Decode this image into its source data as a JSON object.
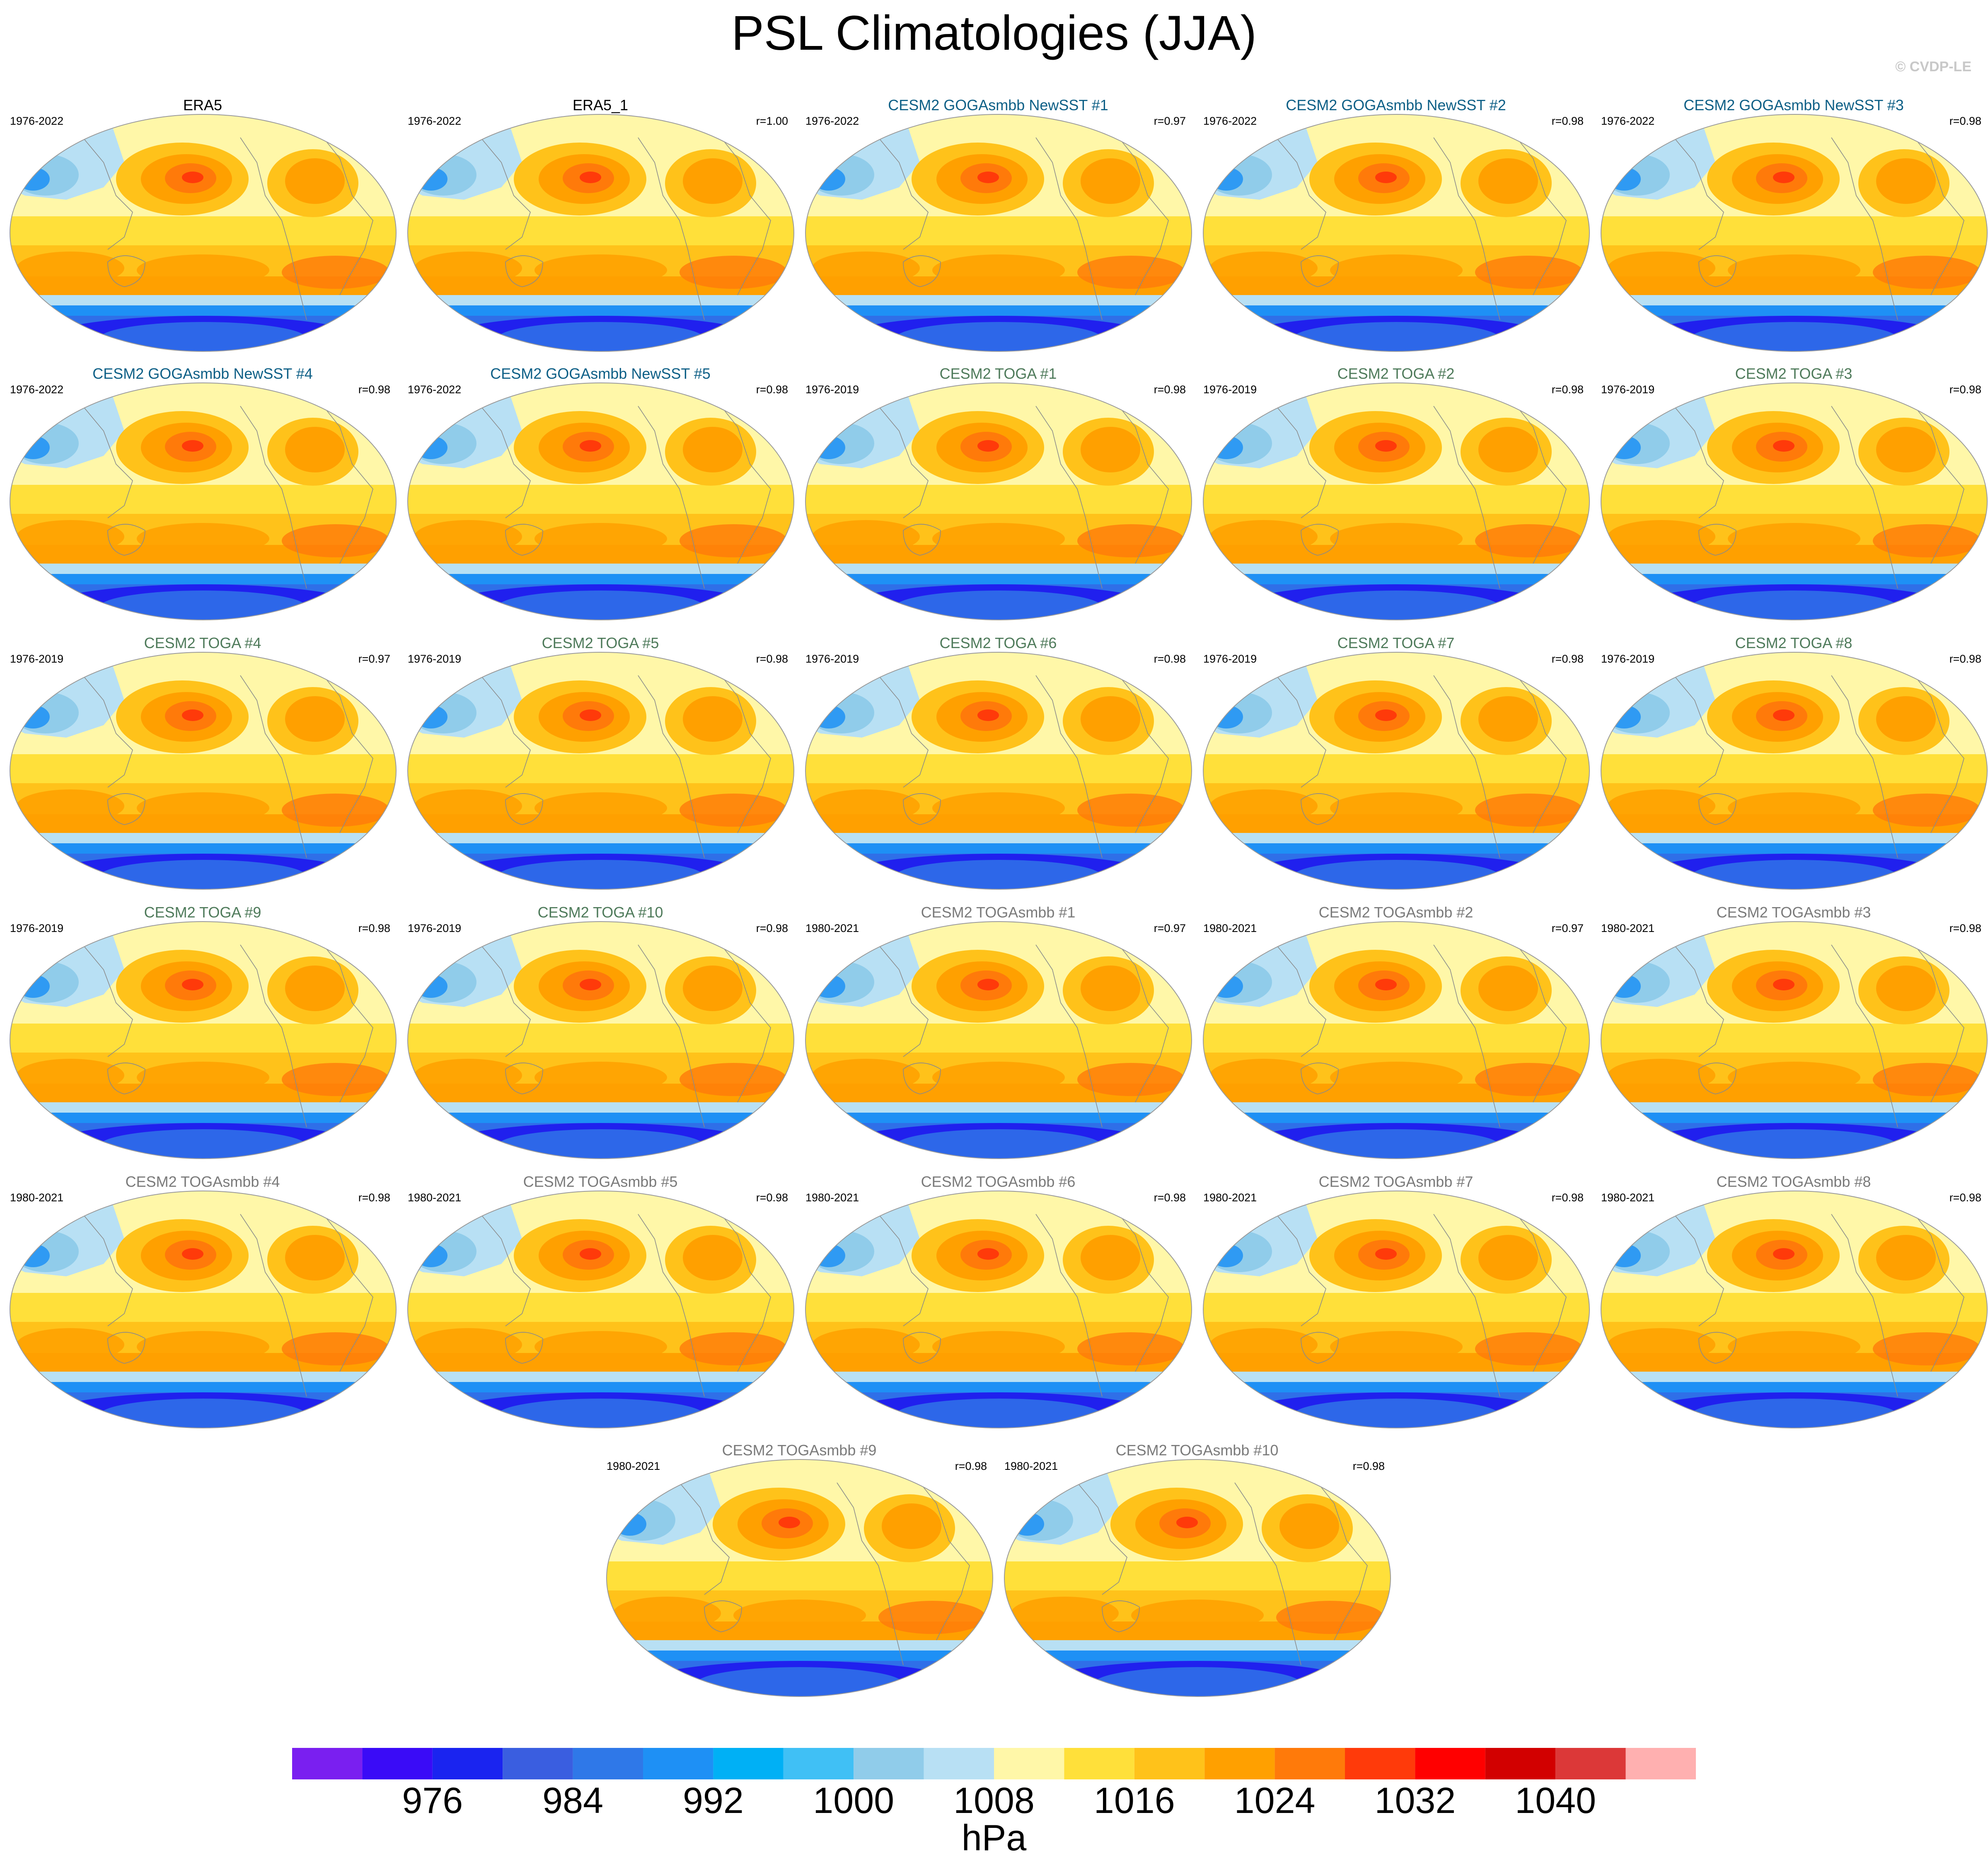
{
  "title": "PSL Climatologies (JJA)",
  "watermark": "© CVDP-LE",
  "title_colors": {
    "obs": "#000000",
    "goga": "#0d5f86",
    "toga": "#4e7a5a",
    "togasmbb": "#7a7a7a"
  },
  "panels": [
    {
      "title": "ERA5",
      "period": "1976-2022",
      "corr": "",
      "group": "obs"
    },
    {
      "title": "ERA5_1",
      "period": "1976-2022",
      "corr": "r=1.00",
      "group": "obs"
    },
    {
      "title": "CESM2 GOGAsmbb NewSST #1",
      "period": "1976-2022",
      "corr": "r=0.97",
      "group": "goga"
    },
    {
      "title": "CESM2 GOGAsmbb NewSST #2",
      "period": "1976-2022",
      "corr": "r=0.98",
      "group": "goga"
    },
    {
      "title": "CESM2 GOGAsmbb NewSST #3",
      "period": "1976-2022",
      "corr": "r=0.98",
      "group": "goga"
    },
    {
      "title": "CESM2 GOGAsmbb NewSST #4",
      "period": "1976-2022",
      "corr": "r=0.98",
      "group": "goga"
    },
    {
      "title": "CESM2 GOGAsmbb NewSST #5",
      "period": "1976-2022",
      "corr": "r=0.98",
      "group": "goga"
    },
    {
      "title": "CESM2 TOGA #1",
      "period": "1976-2019",
      "corr": "r=0.98",
      "group": "toga"
    },
    {
      "title": "CESM2 TOGA #2",
      "period": "1976-2019",
      "corr": "r=0.98",
      "group": "toga"
    },
    {
      "title": "CESM2 TOGA #3",
      "period": "1976-2019",
      "corr": "r=0.98",
      "group": "toga"
    },
    {
      "title": "CESM2 TOGA #4",
      "period": "1976-2019",
      "corr": "r=0.97",
      "group": "toga"
    },
    {
      "title": "CESM2 TOGA #5",
      "period": "1976-2019",
      "corr": "r=0.98",
      "group": "toga"
    },
    {
      "title": "CESM2 TOGA #6",
      "period": "1976-2019",
      "corr": "r=0.98",
      "group": "toga"
    },
    {
      "title": "CESM2 TOGA #7",
      "period": "1976-2019",
      "corr": "r=0.98",
      "group": "toga"
    },
    {
      "title": "CESM2 TOGA #8",
      "period": "1976-2019",
      "corr": "r=0.98",
      "group": "toga"
    },
    {
      "title": "CESM2 TOGA #9",
      "period": "1976-2019",
      "corr": "r=0.98",
      "group": "toga"
    },
    {
      "title": "CESM2 TOGA #10",
      "period": "1976-2019",
      "corr": "r=0.98",
      "group": "toga"
    },
    {
      "title": "CESM2 TOGAsmbb #1",
      "period": "1980-2021",
      "corr": "r=0.97",
      "group": "togasmbb"
    },
    {
      "title": "CESM2 TOGAsmbb #2",
      "period": "1980-2021",
      "corr": "r=0.97",
      "group": "togasmbb"
    },
    {
      "title": "CESM2 TOGAsmbb #3",
      "period": "1980-2021",
      "corr": "r=0.98",
      "group": "togasmbb"
    },
    {
      "title": "CESM2 TOGAsmbb #4",
      "period": "1980-2021",
      "corr": "r=0.98",
      "group": "togasmbb"
    },
    {
      "title": "CESM2 TOGAsmbb #5",
      "period": "1980-2021",
      "corr": "r=0.98",
      "group": "togasmbb"
    },
    {
      "title": "CESM2 TOGAsmbb #6",
      "period": "1980-2021",
      "corr": "r=0.98",
      "group": "togasmbb"
    },
    {
      "title": "CESM2 TOGAsmbb #7",
      "period": "1980-2021",
      "corr": "r=0.98",
      "group": "togasmbb"
    },
    {
      "title": "CESM2 TOGAsmbb #8",
      "period": "1980-2021",
      "corr": "r=0.98",
      "group": "togasmbb"
    },
    {
      "title": "CESM2 TOGAsmbb #9",
      "period": "1980-2021",
      "corr": "r=0.98",
      "group": "togasmbb"
    },
    {
      "title": "CESM2 TOGAsmbb #10",
      "period": "1980-2021",
      "corr": "r=0.98",
      "group": "togasmbb"
    }
  ],
  "colorbar": {
    "colors": [
      "#7a1ff0",
      "#3a0bf7",
      "#1a24f0",
      "#3a5ee0",
      "#2f78e8",
      "#1e90f5",
      "#00b0f5",
      "#40c0f5",
      "#90ccea",
      "#b8e0f4",
      "#fff7a8",
      "#ffe03a",
      "#ffc21a",
      "#ffa000",
      "#ff7a0a",
      "#ff3a0a",
      "#ff0000",
      "#d20000",
      "#dc3838",
      "#ffb0b0"
    ],
    "labels": [
      "976",
      "984",
      "992",
      "1000",
      "1008",
      "1016",
      "1024",
      "1032",
      "1040"
    ],
    "units": "hPa"
  },
  "map_colors": {
    "deep_low": "#2020ee",
    "low": "#2f6fe8",
    "mid_low": "#1e90f5",
    "light_low": "#90ccea",
    "pale_low": "#b8e0f4",
    "neutral": "#fff7a8",
    "moderate": "#ffe03a",
    "high": "#ffc21a",
    "higher": "#ffa000",
    "very_high": "#ff7a0a",
    "peak": "#ff3a0a",
    "coast": "#8a8a8a"
  }
}
